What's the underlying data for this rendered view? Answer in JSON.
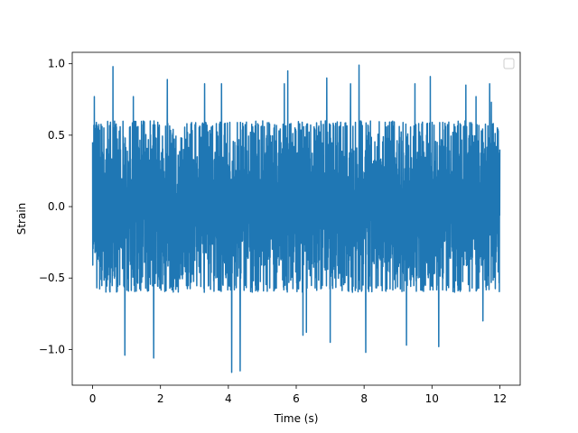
{
  "chart_data": {
    "type": "line",
    "title": "",
    "xlabel": "Time (s)",
    "ylabel": "Strain",
    "xlim": [
      -0.6,
      12.6
    ],
    "ylim": [
      -1.25,
      1.08
    ],
    "xticks": [
      0,
      2,
      4,
      6,
      8,
      10,
      12
    ],
    "xtick_labels": [
      "0",
      "2",
      "4",
      "6",
      "8",
      "10",
      "12"
    ],
    "yticks": [
      -1.0,
      -0.5,
      0.0,
      0.5,
      1.0
    ],
    "ytick_labels": [
      "−1.0",
      "−0.5",
      "0.0",
      "0.5",
      "1.0"
    ],
    "grid": false,
    "legend": {
      "placement": "top-right",
      "entries": []
    },
    "series": [
      {
        "color": "#1f77b4",
        "x_range": [
          0,
          12
        ],
        "typical_range": [
          -0.6,
          0.6
        ],
        "peaks": [
          {
            "x": 0.0,
            "y": 0.45
          },
          {
            "x": 0.05,
            "y": 0.77
          },
          {
            "x": 0.6,
            "y": 0.98
          },
          {
            "x": 0.95,
            "y": -1.04
          },
          {
            "x": 1.2,
            "y": 0.77
          },
          {
            "x": 1.8,
            "y": -1.06
          },
          {
            "x": 2.2,
            "y": 0.89
          },
          {
            "x": 3.3,
            "y": 0.86
          },
          {
            "x": 3.8,
            "y": 0.86
          },
          {
            "x": 4.1,
            "y": -1.16
          },
          {
            "x": 4.35,
            "y": -1.15
          },
          {
            "x": 5.65,
            "y": 0.86
          },
          {
            "x": 5.75,
            "y": 0.95
          },
          {
            "x": 6.2,
            "y": -0.9
          },
          {
            "x": 6.3,
            "y": -0.88
          },
          {
            "x": 6.9,
            "y": 0.9
          },
          {
            "x": 7.0,
            "y": -0.95
          },
          {
            "x": 7.6,
            "y": 0.86
          },
          {
            "x": 7.85,
            "y": 0.99
          },
          {
            "x": 8.05,
            "y": -1.02
          },
          {
            "x": 9.25,
            "y": -0.97
          },
          {
            "x": 9.5,
            "y": 0.86
          },
          {
            "x": 9.95,
            "y": 0.91
          },
          {
            "x": 10.2,
            "y": -0.98
          },
          {
            "x": 11.0,
            "y": 0.85
          },
          {
            "x": 11.3,
            "y": 0.77
          },
          {
            "x": 11.5,
            "y": -0.8
          },
          {
            "x": 11.7,
            "y": 0.86
          },
          {
            "x": 11.75,
            "y": 0.73
          },
          {
            "x": 12.0,
            "y": 0.4
          }
        ]
      }
    ]
  }
}
